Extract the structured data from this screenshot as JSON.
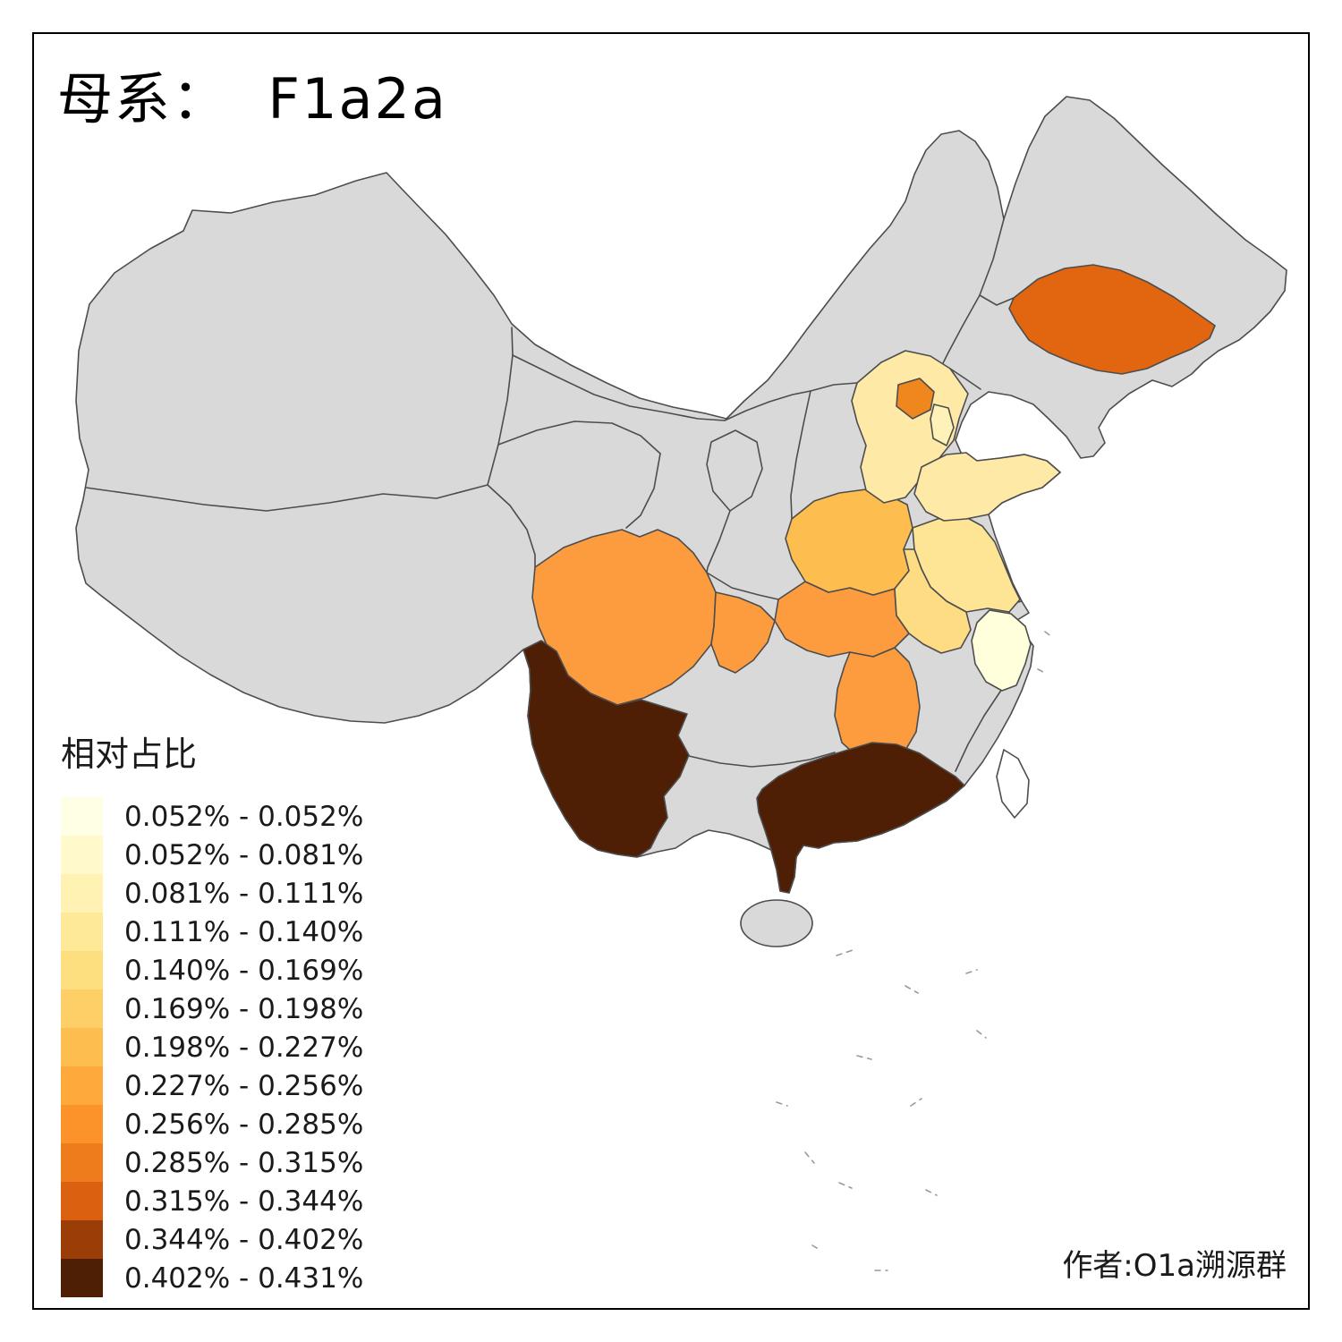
{
  "title": "母系：  F1a2a",
  "legend": {
    "title": "相对占比",
    "items": [
      {
        "label": "0.052% - 0.052%",
        "color": "#FFFFE5"
      },
      {
        "label": "0.052% - 0.081%",
        "color": "#FFF9CC"
      },
      {
        "label": "0.081% - 0.111%",
        "color": "#FFF2B3"
      },
      {
        "label": "0.111% - 0.140%",
        "color": "#FEE999"
      },
      {
        "label": "0.140% - 0.169%",
        "color": "#FEDF80"
      },
      {
        "label": "0.169% - 0.198%",
        "color": "#FECF66"
      },
      {
        "label": "0.198% - 0.227%",
        "color": "#FEBD4F"
      },
      {
        "label": "0.227% - 0.256%",
        "color": "#FEA93B"
      },
      {
        "label": "0.256% - 0.285%",
        "color": "#FB932A"
      },
      {
        "label": "0.285% - 0.315%",
        "color": "#EE7B1C"
      },
      {
        "label": "0.315% - 0.344%",
        "color": "#DB6110"
      },
      {
        "label": "0.344% - 0.402%",
        "color": "#9A3D06"
      },
      {
        "label": "0.402% - 0.431%",
        "color": "#4E1E05"
      }
    ]
  },
  "attribution": "作者:O1a溯源群",
  "map": {
    "no_data_color": "#D9D9D9",
    "border_color": "#4D4D4D",
    "regions": {
      "mainland": {
        "color": "#D9D9D9"
      },
      "jilin": {
        "color": "#E1660F"
      },
      "beijing": {
        "color": "#F0861E"
      },
      "tianjin": {
        "color": "#FFF2B8"
      },
      "hebei": {
        "color": "#FEE9A6"
      },
      "shandong": {
        "color": "#FEE9A6"
      },
      "henan": {
        "color": "#FEBD4F"
      },
      "jiangsu": {
        "color": "#FEE596"
      },
      "anhui": {
        "color": "#FEDC83"
      },
      "hubei": {
        "color": "#FD9C3E"
      },
      "chongqing": {
        "color": "#FD9C3E"
      },
      "sichuan": {
        "color": "#FD9C3E"
      },
      "hunan": {
        "color": "#FD9C3E"
      },
      "zhejiang": {
        "color": "#FFFFDB"
      },
      "yunnan": {
        "color": "#4E1E05"
      },
      "guangdong": {
        "color": "#4E1E05"
      },
      "hainan": {
        "color": "#D9D9D9"
      },
      "taiwan": {
        "color": "#FFFFFF"
      }
    }
  }
}
